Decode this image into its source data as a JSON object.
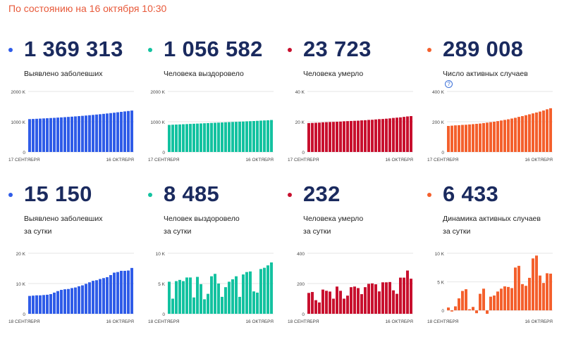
{
  "status": "По состоянию на 16 октября 10:30",
  "cards": [
    {
      "value": "1 369 313",
      "label": [
        "Выявлено заболевших"
      ],
      "color": "#2f5ce8",
      "dot_color": "#2f5ce8",
      "help": false
    },
    {
      "value": "1 056 582",
      "label": [
        "Человека выздоровело"
      ],
      "color": "#13c2a0",
      "dot_color": "#13c2a0",
      "help": false
    },
    {
      "value": "23 723",
      "label": [
        "Человека умерло"
      ],
      "color": "#c8102e",
      "dot_color": "#c8102e",
      "help": false
    },
    {
      "value": "289 008",
      "label": [
        "Число активных случаев"
      ],
      "color": "#f4602d",
      "dot_color": "#f4602d",
      "help": true
    },
    {
      "value": "15 150",
      "label": [
        "Выявлено заболевших",
        "за сутки"
      ],
      "color": "#2f5ce8",
      "dot_color": "#2f5ce8",
      "help": false
    },
    {
      "value": "8 485",
      "label": [
        "Человек выздоровело",
        "за сутки"
      ],
      "color": "#13c2a0",
      "dot_color": "#13c2a0",
      "help": false
    },
    {
      "value": "232",
      "label": [
        "Человека умерло",
        "за сутки"
      ],
      "color": "#c8102e",
      "dot_color": "#c8102e",
      "help": false
    },
    {
      "value": "6 433",
      "label": [
        "Динамика активных случаев",
        "за сутки"
      ],
      "color": "#f4602d",
      "dot_color": "#f4602d",
      "help": false
    }
  ],
  "help_icon": "question-circle-icon",
  "chart_data": [
    {
      "type": "bar",
      "yticks": [
        "2000 K",
        "1000 K",
        "0"
      ],
      "ylim": [
        0,
        2000000
      ],
      "x_start": "17 СЕНТЯБРЯ",
      "x_end": "16 ОКТЯБРЯ",
      "values": [
        1086000,
        1091000,
        1097000,
        1103000,
        1109000,
        1115000,
        1122000,
        1128000,
        1136000,
        1143000,
        1151000,
        1159000,
        1167000,
        1176000,
        1185000,
        1194000,
        1204000,
        1215000,
        1225000,
        1237000,
        1248000,
        1260000,
        1272000,
        1285000,
        1298000,
        1312000,
        1326000,
        1340000,
        1354000,
        1369313
      ]
    },
    {
      "type": "bar",
      "yticks": [
        "2000 K",
        "1000 K",
        "0"
      ],
      "ylim": [
        0,
        2000000
      ],
      "x_start": "17 СЕНТЯБРЯ",
      "x_end": "16 ОКТЯБРЯ",
      "values": [
        895000,
        901000,
        906000,
        911000,
        917000,
        922000,
        928000,
        933000,
        938000,
        943000,
        949000,
        954000,
        959000,
        965000,
        970000,
        975000,
        981000,
        986000,
        992000,
        997000,
        1002000,
        1007000,
        1013000,
        1018000,
        1023000,
        1029000,
        1036000,
        1042000,
        1048000,
        1056582
      ]
    },
    {
      "type": "bar",
      "yticks": [
        "40 K",
        "20 K",
        "0"
      ],
      "ylim": [
        0,
        40000
      ],
      "x_start": "17 СЕНТЯБРЯ",
      "x_end": "16 ОКТЯБРЯ",
      "values": [
        19100,
        19200,
        19300,
        19400,
        19600,
        19700,
        19800,
        19900,
        20000,
        20100,
        20300,
        20400,
        20500,
        20600,
        20700,
        20900,
        21000,
        21200,
        21300,
        21500,
        21700,
        21800,
        22000,
        22200,
        22500,
        22700,
        22900,
        23200,
        23500,
        23723
      ]
    },
    {
      "type": "bar",
      "yticks": [
        "400 K",
        "200 K",
        "0"
      ],
      "ylim": [
        0,
        400000
      ],
      "x_start": "17 СЕНТЯБРЯ",
      "x_end": "16 ОКТЯБРЯ",
      "values": [
        172000,
        174000,
        176000,
        177000,
        179000,
        180000,
        182000,
        184000,
        186000,
        188000,
        191000,
        194000,
        197000,
        200000,
        204000,
        208000,
        212000,
        216000,
        221000,
        226000,
        232000,
        237000,
        243000,
        249000,
        255000,
        261000,
        267000,
        274000,
        282000,
        289008
      ]
    },
    {
      "type": "bar",
      "yticks": [
        "20 K",
        "10 K",
        "0"
      ],
      "ylim": [
        0,
        20000
      ],
      "x_start": "18 СЕНТЯБРЯ",
      "x_end": "16 ОКТЯБРЯ",
      "values": [
        5900,
        6000,
        6100,
        6100,
        6200,
        6300,
        6500,
        7000,
        7500,
        7900,
        8100,
        8200,
        8500,
        8700,
        9100,
        9400,
        9900,
        10400,
        10900,
        11100,
        11500,
        11800,
        12100,
        12800,
        13600,
        13800,
        14200,
        14200,
        14300,
        15150
      ]
    },
    {
      "type": "bar",
      "yticks": [
        "10 K",
        "5 K",
        "0"
      ],
      "ylim": [
        0,
        10000
      ],
      "x_start": "18 СЕНТЯБРЯ",
      "x_end": "16 ОКТЯБРЯ",
      "values": [
        5300,
        2500,
        5400,
        5600,
        5400,
        6000,
        6000,
        2700,
        6100,
        4900,
        2400,
        3300,
        6200,
        6600,
        5000,
        2800,
        4400,
        5300,
        5700,
        6200,
        2800,
        6500,
        6900,
        7000,
        3700,
        3500,
        7400,
        7600,
        8000,
        8485
      ]
    },
    {
      "type": "bar",
      "yticks": [
        "400",
        "200",
        "0"
      ],
      "ylim": [
        0,
        400
      ],
      "x_start": "18 СЕНТЯБРЯ",
      "x_end": "16 ОКТЯБРЯ",
      "values": [
        138,
        144,
        90,
        75,
        160,
        152,
        147,
        100,
        180,
        152,
        100,
        120,
        176,
        180,
        170,
        130,
        176,
        198,
        201,
        195,
        148,
        208,
        208,
        210,
        155,
        132,
        239,
        239,
        286,
        232
      ]
    },
    {
      "type": "bar",
      "yticks": [
        "10 K",
        "5 K",
        "0"
      ],
      "ylim": [
        -600,
        10000
      ],
      "x_start": "18 СЕНТЯБРЯ",
      "x_end": "16 ОКТЯБРЯ",
      "values": [
        500,
        -200,
        700,
        2100,
        3400,
        3700,
        200,
        600,
        -500,
        2900,
        3800,
        -600,
        2400,
        2600,
        3300,
        3800,
        4200,
        4100,
        3900,
        7500,
        7800,
        4600,
        4300,
        5700,
        9100,
        9600,
        6100,
        4800,
        6500,
        6433
      ]
    }
  ]
}
